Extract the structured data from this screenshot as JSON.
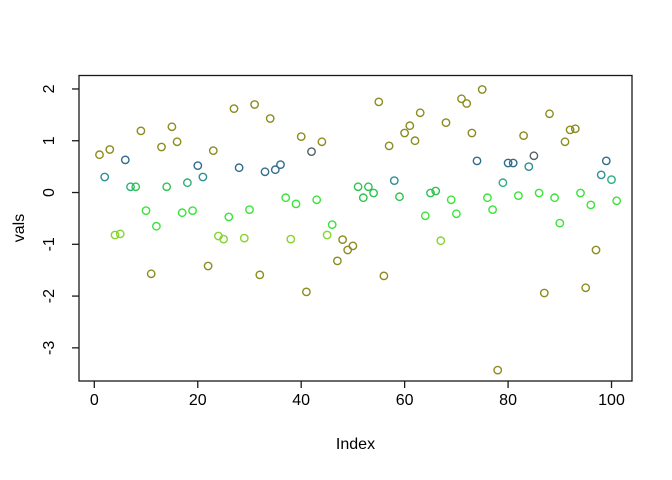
{
  "figure": {
    "background": "#ffffff",
    "axis_color": "#1a1a1a"
  },
  "palette": {
    "olive": "#8B8B1E",
    "gray": "#555F63",
    "steel": "#2F6C8C",
    "teal": "#2C8E96",
    "emerald": "#2BAE7C",
    "green": "#2DC24E",
    "bright": "#38E438",
    "ygreen": "#86D42C"
  },
  "chart_data": {
    "type": "scatter",
    "title": "",
    "xlabel": "Index",
    "ylabel": "vals",
    "xlim": [
      -2.96,
      103.96
    ],
    "ylim": [
      -3.64,
      2.26
    ],
    "x_ticks": [
      0,
      20,
      40,
      60,
      80,
      100
    ],
    "y_ticks": [
      -3,
      -2,
      -1,
      0,
      1,
      2
    ],
    "grid": false,
    "legend": null,
    "marker": "open-circle",
    "points": [
      {
        "x": 1,
        "y": 0.73,
        "c": "olive"
      },
      {
        "x": 2,
        "y": 0.3,
        "c": "teal"
      },
      {
        "x": 3,
        "y": 0.83,
        "c": "olive"
      },
      {
        "x": 4,
        "y": -0.82,
        "c": "ygreen"
      },
      {
        "x": 5,
        "y": -0.8,
        "c": "ygreen"
      },
      {
        "x": 6,
        "y": 0.63,
        "c": "steel"
      },
      {
        "x": 7,
        "y": 0.11,
        "c": "emerald"
      },
      {
        "x": 8,
        "y": 0.11,
        "c": "green"
      },
      {
        "x": 9,
        "y": 1.19,
        "c": "olive"
      },
      {
        "x": 10,
        "y": -0.35,
        "c": "bright"
      },
      {
        "x": 11,
        "y": -1.57,
        "c": "olive"
      },
      {
        "x": 12,
        "y": -0.65,
        "c": "bright"
      },
      {
        "x": 13,
        "y": 0.88,
        "c": "olive"
      },
      {
        "x": 14,
        "y": 0.11,
        "c": "green"
      },
      {
        "x": 15,
        "y": 1.27,
        "c": "olive"
      },
      {
        "x": 16,
        "y": 0.98,
        "c": "olive"
      },
      {
        "x": 17,
        "y": -0.39,
        "c": "bright"
      },
      {
        "x": 18,
        "y": 0.19,
        "c": "emerald"
      },
      {
        "x": 19,
        "y": -0.35,
        "c": "bright"
      },
      {
        "x": 20,
        "y": 0.52,
        "c": "steel"
      },
      {
        "x": 21,
        "y": 0.3,
        "c": "teal"
      },
      {
        "x": 22,
        "y": -1.42,
        "c": "olive"
      },
      {
        "x": 23,
        "y": 0.81,
        "c": "olive"
      },
      {
        "x": 24,
        "y": -0.84,
        "c": "ygreen"
      },
      {
        "x": 25,
        "y": -0.9,
        "c": "ygreen"
      },
      {
        "x": 26,
        "y": -0.47,
        "c": "bright"
      },
      {
        "x": 27,
        "y": 1.62,
        "c": "olive"
      },
      {
        "x": 28,
        "y": 0.48,
        "c": "steel"
      },
      {
        "x": 29,
        "y": -0.88,
        "c": "ygreen"
      },
      {
        "x": 30,
        "y": -0.33,
        "c": "bright"
      },
      {
        "x": 31,
        "y": 1.7,
        "c": "olive"
      },
      {
        "x": 32,
        "y": -1.59,
        "c": "olive"
      },
      {
        "x": 33,
        "y": 0.4,
        "c": "steel"
      },
      {
        "x": 34,
        "y": 1.43,
        "c": "olive"
      },
      {
        "x": 35,
        "y": 0.44,
        "c": "steel"
      },
      {
        "x": 36,
        "y": 0.54,
        "c": "steel"
      },
      {
        "x": 37,
        "y": -0.1,
        "c": "bright"
      },
      {
        "x": 38,
        "y": -0.9,
        "c": "ygreen"
      },
      {
        "x": 39,
        "y": -0.22,
        "c": "bright"
      },
      {
        "x": 40,
        "y": 1.08,
        "c": "olive"
      },
      {
        "x": 41,
        "y": -1.92,
        "c": "olive"
      },
      {
        "x": 42,
        "y": 0.79,
        "c": "gray"
      },
      {
        "x": 43,
        "y": -0.14,
        "c": "bright"
      },
      {
        "x": 44,
        "y": 0.98,
        "c": "olive"
      },
      {
        "x": 45,
        "y": -0.82,
        "c": "ygreen"
      },
      {
        "x": 46,
        "y": -0.62,
        "c": "bright"
      },
      {
        "x": 47,
        "y": -1.32,
        "c": "olive"
      },
      {
        "x": 48,
        "y": -0.91,
        "c": "olive"
      },
      {
        "x": 49,
        "y": -1.11,
        "c": "olive"
      },
      {
        "x": 50,
        "y": -1.03,
        "c": "olive"
      },
      {
        "x": 51,
        "y": 0.11,
        "c": "green"
      },
      {
        "x": 52,
        "y": -0.1,
        "c": "green"
      },
      {
        "x": 53,
        "y": 0.11,
        "c": "green"
      },
      {
        "x": 54,
        "y": -0.01,
        "c": "green"
      },
      {
        "x": 55,
        "y": 1.75,
        "c": "olive"
      },
      {
        "x": 56,
        "y": -1.61,
        "c": "olive"
      },
      {
        "x": 57,
        "y": 0.9,
        "c": "olive"
      },
      {
        "x": 58,
        "y": 0.23,
        "c": "teal"
      },
      {
        "x": 59,
        "y": -0.08,
        "c": "green"
      },
      {
        "x": 60,
        "y": 1.15,
        "c": "olive"
      },
      {
        "x": 61,
        "y": 1.29,
        "c": "olive"
      },
      {
        "x": 62,
        "y": 1.0,
        "c": "olive"
      },
      {
        "x": 63,
        "y": 1.54,
        "c": "olive"
      },
      {
        "x": 64,
        "y": -0.45,
        "c": "bright"
      },
      {
        "x": 65,
        "y": -0.01,
        "c": "green"
      },
      {
        "x": 66,
        "y": 0.03,
        "c": "green"
      },
      {
        "x": 67,
        "y": -0.93,
        "c": "ygreen"
      },
      {
        "x": 68,
        "y": 1.35,
        "c": "olive"
      },
      {
        "x": 69,
        "y": -0.14,
        "c": "bright"
      },
      {
        "x": 70,
        "y": -0.41,
        "c": "bright"
      },
      {
        "x": 71,
        "y": 1.81,
        "c": "olive"
      },
      {
        "x": 72,
        "y": 1.72,
        "c": "olive"
      },
      {
        "x": 73,
        "y": 1.15,
        "c": "olive"
      },
      {
        "x": 74,
        "y": 0.61,
        "c": "steel"
      },
      {
        "x": 75,
        "y": 1.99,
        "c": "olive"
      },
      {
        "x": 76,
        "y": -0.1,
        "c": "bright"
      },
      {
        "x": 77,
        "y": -0.33,
        "c": "bright"
      },
      {
        "x": 78,
        "y": -3.43,
        "c": "olive"
      },
      {
        "x": 79,
        "y": 0.19,
        "c": "emerald"
      },
      {
        "x": 80,
        "y": 0.57,
        "c": "steel"
      },
      {
        "x": 81,
        "y": 0.57,
        "c": "steel"
      },
      {
        "x": 82,
        "y": -0.06,
        "c": "bright"
      },
      {
        "x": 83,
        "y": 1.1,
        "c": "olive"
      },
      {
        "x": 84,
        "y": 0.5,
        "c": "teal"
      },
      {
        "x": 85,
        "y": 0.71,
        "c": "gray"
      },
      {
        "x": 86,
        "y": -0.01,
        "c": "bright"
      },
      {
        "x": 87,
        "y": -1.94,
        "c": "olive"
      },
      {
        "x": 88,
        "y": 1.52,
        "c": "olive"
      },
      {
        "x": 89,
        "y": -0.1,
        "c": "bright"
      },
      {
        "x": 90,
        "y": -0.59,
        "c": "bright"
      },
      {
        "x": 91,
        "y": 0.98,
        "c": "olive"
      },
      {
        "x": 92,
        "y": 1.21,
        "c": "olive"
      },
      {
        "x": 93,
        "y": 1.23,
        "c": "olive"
      },
      {
        "x": 94,
        "y": -0.01,
        "c": "bright"
      },
      {
        "x": 95,
        "y": -1.84,
        "c": "olive"
      },
      {
        "x": 96,
        "y": -0.24,
        "c": "bright"
      },
      {
        "x": 97,
        "y": -1.11,
        "c": "olive"
      },
      {
        "x": 98,
        "y": 0.34,
        "c": "teal"
      },
      {
        "x": 99,
        "y": 0.61,
        "c": "steel"
      },
      {
        "x": 100,
        "y": 0.25,
        "c": "emerald"
      },
      {
        "x": 101,
        "y": -0.16,
        "c": "bright"
      }
    ]
  }
}
